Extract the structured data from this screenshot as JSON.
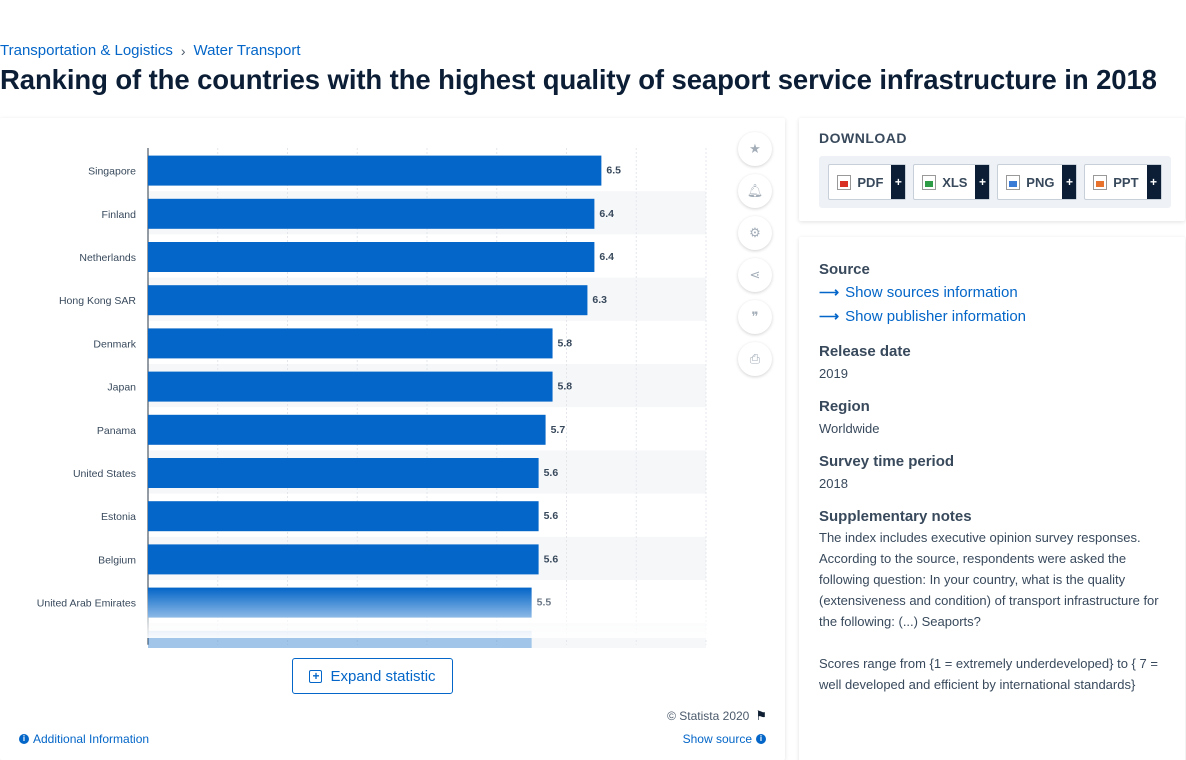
{
  "breadcrumb": {
    "category": "Transportation & Logistics",
    "separator": "›",
    "subcategory": "Water Transport"
  },
  "title": "Ranking of the countries with the highest quality of seaport service infrastructure in 2018",
  "tools": {
    "icons": [
      "star-icon",
      "bell-icon",
      "gear-icon",
      "share-icon",
      "quote-icon",
      "print-icon"
    ]
  },
  "chart": {
    "expand_label": "Expand statistic",
    "copyright": "© Statista 2020",
    "additional_info": "Additional Information",
    "show_source": "Show source"
  },
  "chart_data": {
    "type": "bar",
    "orientation": "horizontal",
    "categories": [
      "Singapore",
      "Finland",
      "Netherlands",
      "Hong Kong SAR",
      "Denmark",
      "Japan",
      "Panama",
      "United States",
      "Estonia",
      "Belgium",
      "United Arab Emirates"
    ],
    "values": [
      6.5,
      6.4,
      6.4,
      6.3,
      5.8,
      5.8,
      5.7,
      5.6,
      5.6,
      5.6,
      5.5
    ],
    "xlim": [
      0,
      8
    ],
    "grid": true,
    "bar_color": "#0466c8"
  },
  "download": {
    "title": "DOWNLOAD",
    "buttons": [
      {
        "label": "PDF",
        "plus": "+"
      },
      {
        "label": "XLS",
        "plus": "+"
      },
      {
        "label": "PNG",
        "plus": "+"
      },
      {
        "label": "PPT",
        "plus": "+"
      }
    ]
  },
  "info": {
    "source_heading": "Source",
    "sources_link": "Show sources information",
    "publisher_link": "Show publisher information",
    "release_heading": "Release date",
    "release_value": "2019",
    "region_heading": "Region",
    "region_value": "Worldwide",
    "period_heading": "Survey time period",
    "period_value": "2018",
    "notes_heading": "Supplementary notes",
    "notes_p1": "The index includes executive opinion survey responses. According to the source, respondents were asked the following question: In your country, what is the quality (extensiveness and condition) of transport infrastructure for the following: (...) Seaports?",
    "notes_p2": "Scores range from {1 = extremely underdeveloped} to { 7 = well developed and efficient by international standards}"
  }
}
